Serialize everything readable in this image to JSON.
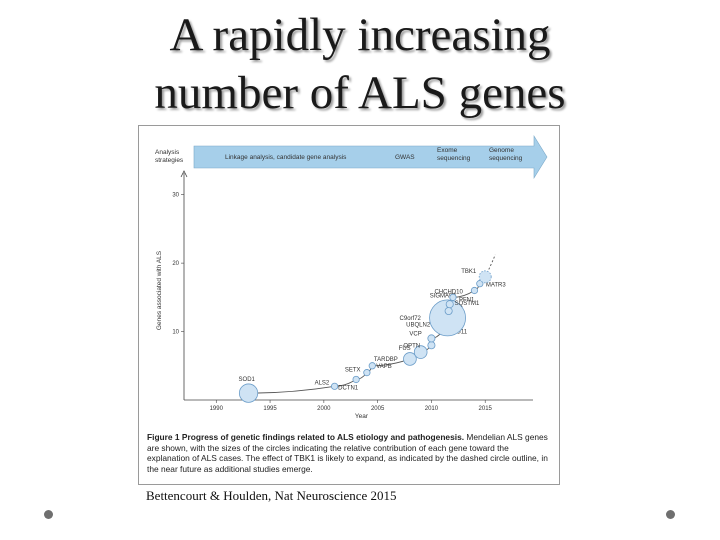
{
  "slide": {
    "title_line1": "A rapidly increasing",
    "title_line2": "number of ALS genes",
    "citation": "Bettencourt & Houlden, Nat Neuroscience 2015"
  },
  "colors": {
    "band": "#a6cfea",
    "circle_fill": "#cfe3f4",
    "circle_stroke": "#6a9cc8",
    "curve": "#555555"
  },
  "chart_data": {
    "type": "scatter",
    "xlabel": "Year",
    "ylabel": "Genes associated with ALS",
    "xlim": [
      1987,
      2020
    ],
    "ylim": [
      0,
      32
    ],
    "x_ticks": [
      1990,
      1995,
      2000,
      2005,
      2010,
      2015
    ],
    "y_ticks": [
      10,
      20,
      30
    ],
    "y_tick_labels": [
      "10",
      "20",
      "30"
    ],
    "strategy_band": {
      "label_left": "Analysis strategies",
      "stages": [
        "Linkage analysis, candidate gene analysis",
        "GWAS",
        "Exome sequencing",
        "Genome sequencing"
      ]
    },
    "genes": [
      {
        "name": "SOD1",
        "year": 1993,
        "count": 1,
        "size": 0.9
      },
      {
        "name": "ALS2",
        "year": 2001,
        "count": 2,
        "size": 0.15
      },
      {
        "name": "DCTN1",
        "year": 2003,
        "count": 3,
        "size": 0.15
      },
      {
        "name": "SETX",
        "year": 2004,
        "count": 4,
        "size": 0.15
      },
      {
        "name": "VAPB",
        "year": 2004.5,
        "count": 5,
        "size": 0.15
      },
      {
        "name": "TARDBP",
        "year": 2008,
        "count": 6,
        "size": 0.55
      },
      {
        "name": "FUS",
        "year": 2009,
        "count": 7,
        "size": 0.55
      },
      {
        "name": "OPTN",
        "year": 2010,
        "count": 8,
        "size": 0.2
      },
      {
        "name": "VCP",
        "year": 2010,
        "count": 9,
        "size": 0.2
      },
      {
        "name": "SPG11",
        "year": 2011,
        "count": 10,
        "size": 0.15
      },
      {
        "name": "UBQLN2",
        "year": 2011,
        "count": 11,
        "size": 0.2
      },
      {
        "name": "C9orf72",
        "year": 2011.5,
        "count": 12,
        "size": 2.0
      },
      {
        "name": "SQSTM1",
        "year": 2011.6,
        "count": 13,
        "size": 0.2
      },
      {
        "name": "SIGMAR1",
        "year": 2011.7,
        "count": 14,
        "size": 0.2
      },
      {
        "name": "PFN1",
        "year": 2012,
        "count": 15,
        "size": 0.15
      },
      {
        "name": "CHCHD10",
        "year": 2014,
        "count": 16,
        "size": 0.15
      },
      {
        "name": "MATR3",
        "year": 2014.5,
        "count": 17,
        "size": 0.15
      },
      {
        "name": "TBK1",
        "year": 2015,
        "count": 18,
        "size": 0.5
      }
    ]
  },
  "caption": {
    "lead": "Figure 1  Progress of genetic findings related to ALS etiology and pathogenesis.",
    "body": " Mendelian ALS genes are shown, with the sizes of the circles indicating the relative contribution of each gene toward the explanation of ALS cases. The effect of TBK1 is likely to expand, as indicated by the dashed circle outline, in the near future as additional studies emerge."
  }
}
